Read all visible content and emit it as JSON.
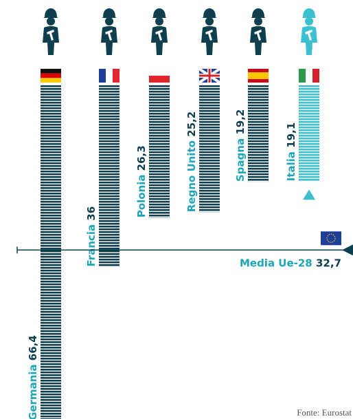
{
  "chart_data": {
    "type": "bar",
    "categories": [
      "Germania",
      "Francia",
      "Polonia",
      "Regno Unito",
      "Spagna",
      "Italia"
    ],
    "values": [
      66.4,
      36,
      26.3,
      25.2,
      19.2,
      19.1
    ],
    "value_labels": [
      "66,4",
      "36",
      "26,3",
      "25,2",
      "19,2",
      "19,1"
    ],
    "colors": [
      "#0d3f4f",
      "#0d3f4f",
      "#0d3f4f",
      "#0d3f4f",
      "#0d3f4f",
      "#3cc0cf"
    ],
    "average": {
      "label": "Media Ue-28",
      "value": 32.7,
      "value_label": "32,7"
    },
    "source": "Fonte: Eurostat"
  }
}
